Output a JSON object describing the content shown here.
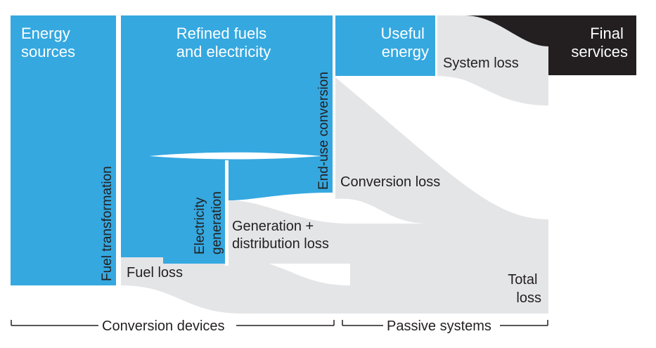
{
  "nodes": {
    "energy_sources": [
      "Energy",
      "sources"
    ],
    "refined_fuels": [
      "Refined fuels",
      "and electricity"
    ],
    "useful_energy": [
      "Useful",
      "energy"
    ],
    "final_services": [
      "Final",
      "services"
    ],
    "electricity_generation": [
      "Electricity",
      "generation"
    ],
    "total_loss": [
      "Total",
      "loss"
    ]
  },
  "stages": {
    "fuel_transformation": "Fuel transformation",
    "end_use_conversion": "End-use conversion"
  },
  "losses": {
    "fuel_loss": "Fuel loss",
    "generation_distribution_loss": [
      "Generation +",
      "distribution loss"
    ],
    "conversion_loss": "Conversion loss",
    "system_loss": "System loss"
  },
  "brackets": {
    "conversion_devices": "Conversion devices",
    "passive_systems": "Passive systems"
  },
  "colors": {
    "energy_flow": "#35a8e0",
    "loss_flow": "#e4e5e7",
    "final_services": "#231f20",
    "text_dark": "#231f20",
    "text_light": "#ffffff"
  }
}
